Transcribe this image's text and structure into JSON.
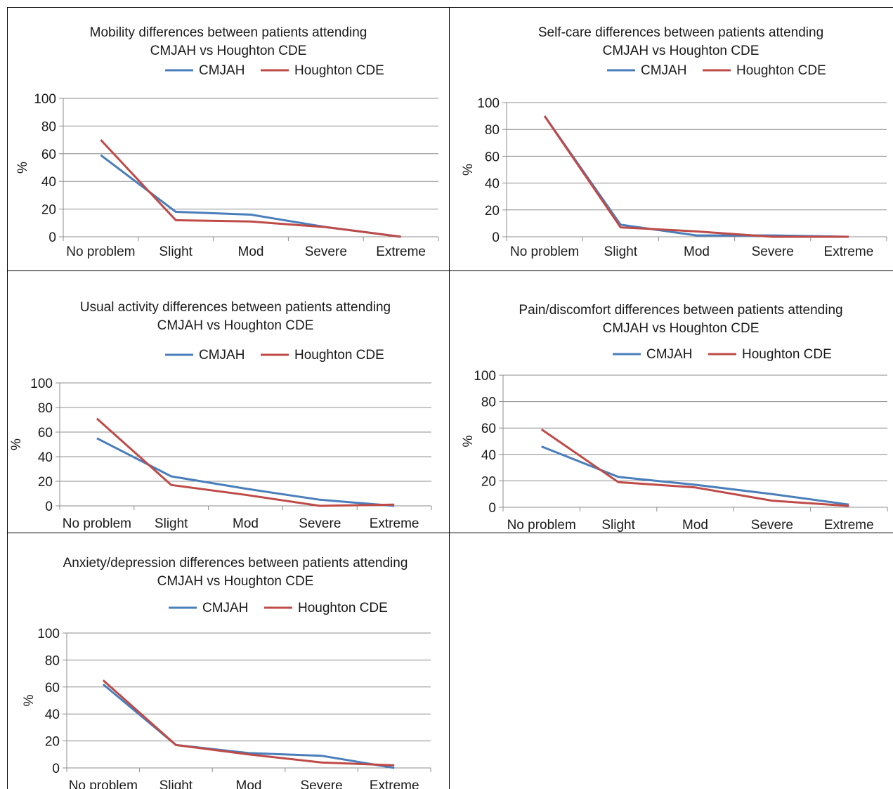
{
  "colors": {
    "cmjah": "#4a7ebb",
    "houghton": "#be4b48",
    "grid": "#8c8c8c",
    "border": "#000000"
  },
  "charts": [
    {
      "title_line1": "Mobility differences between patients attending",
      "title_line2": "CMJAH vs Houghton CDE",
      "ylabel": "%",
      "yticks": [
        "0",
        "20",
        "40",
        "60",
        "80",
        "100"
      ],
      "categories": [
        "No problem",
        "Slight",
        "Mod",
        "Severe",
        "Extreme"
      ],
      "series_names": [
        "CMJAH",
        "Houghton CDE"
      ]
    },
    {
      "title_line1": "Self-care differences between patients attending",
      "title_line2": "CMJAH vs Houghton CDE",
      "ylabel": "%",
      "yticks": [
        "0",
        "20",
        "40",
        "60",
        "80",
        "100"
      ],
      "categories": [
        "No problem",
        "Slight",
        "Mod",
        "Severe",
        "Extreme"
      ],
      "series_names": [
        "CMJAH",
        "Houghton CDE"
      ]
    },
    {
      "title_line1": "Usual activity differences between patients attending",
      "title_line2": "CMJAH vs Houghton CDE",
      "ylabel": "%",
      "yticks": [
        "0",
        "20",
        "40",
        "60",
        "80",
        "100"
      ],
      "categories": [
        "No problem",
        "Slight",
        "Mod",
        "Severe",
        "Extreme"
      ],
      "series_names": [
        "CMJAH",
        "Houghton CDE"
      ]
    },
    {
      "title_line1": "Pain/discomfort differences between patients attending",
      "title_line2": "CMJAH vs Houghton CDE",
      "ylabel": "%",
      "yticks": [
        "0",
        "20",
        "40",
        "60",
        "80",
        "100"
      ],
      "categories": [
        "No problem",
        "Slight",
        "Mod",
        "Severe",
        "Extreme"
      ],
      "series_names": [
        "CMJAH",
        "Houghton CDE"
      ]
    },
    {
      "title_line1": "Anxiety/depression differences between patients attending",
      "title_line2": "CMJAH vs Houghton CDE",
      "ylabel": "%",
      "yticks": [
        "0",
        "20",
        "40",
        "60",
        "80",
        "100"
      ],
      "categories": [
        "No problem",
        "Slight",
        "Mod",
        "Severe",
        "Extreme"
      ],
      "series_names": [
        "CMJAH",
        "Houghton CDE"
      ]
    }
  ],
  "chart_data": [
    {
      "type": "line",
      "title": "Mobility differences between patients attending CMJAH vs Houghton CDE",
      "categories": [
        "No problem",
        "Slight",
        "Mod",
        "Severe",
        "Extreme"
      ],
      "series": [
        {
          "name": "CMJAH",
          "values": [
            59,
            18,
            16,
            7,
            0
          ]
        },
        {
          "name": "Houghton CDE",
          "values": [
            70,
            12,
            11,
            7,
            0
          ]
        }
      ],
      "ylabel": "%",
      "ylim": [
        0,
        100
      ],
      "grid": true,
      "legend": "top"
    },
    {
      "type": "line",
      "title": "Self-care differences between patients attending CMJAH vs Houghton CDE",
      "categories": [
        "No problem",
        "Slight",
        "Mod",
        "Severe",
        "Extreme"
      ],
      "series": [
        {
          "name": "CMJAH",
          "values": [
            90,
            9,
            1,
            1,
            0
          ]
        },
        {
          "name": "Houghton CDE",
          "values": [
            90,
            7,
            4,
            0,
            0
          ]
        }
      ],
      "ylabel": "%",
      "ylim": [
        0,
        100
      ],
      "grid": true,
      "legend": "top"
    },
    {
      "type": "line",
      "title": "Usual activity differences between patients attending CMJAH vs Houghton CDE",
      "categories": [
        "No problem",
        "Slight",
        "Mod",
        "Severe",
        "Extreme"
      ],
      "series": [
        {
          "name": "CMJAH",
          "values": [
            55,
            24,
            14,
            5,
            0
          ]
        },
        {
          "name": "Houghton CDE",
          "values": [
            71,
            17,
            9,
            0,
            1
          ]
        }
      ],
      "ylabel": "%",
      "ylim": [
        0,
        100
      ],
      "grid": true,
      "legend": "top"
    },
    {
      "type": "line",
      "title": "Pain/discomfort differences between patients attending CMJAH vs Houghton CDE",
      "categories": [
        "No problem",
        "Slight",
        "Mod",
        "Severe",
        "Extreme"
      ],
      "series": [
        {
          "name": "CMJAH",
          "values": [
            46,
            23,
            17,
            10,
            2
          ]
        },
        {
          "name": "Houghton CDE",
          "values": [
            59,
            19,
            15,
            5,
            1
          ]
        }
      ],
      "ylabel": "%",
      "ylim": [
        0,
        100
      ],
      "grid": true,
      "legend": "top"
    },
    {
      "type": "line",
      "title": "Anxiety/depression differences between patients attending CMJAH vs Houghton CDE",
      "categories": [
        "No problem",
        "Slight",
        "Mod",
        "Severe",
        "Extreme"
      ],
      "series": [
        {
          "name": "CMJAH",
          "values": [
            62,
            17,
            11,
            9,
            0
          ]
        },
        {
          "name": "Houghton CDE",
          "values": [
            65,
            17,
            10,
            4,
            2
          ]
        }
      ],
      "ylabel": "%",
      "ylim": [
        0,
        100
      ],
      "grid": true,
      "legend": "top"
    }
  ]
}
